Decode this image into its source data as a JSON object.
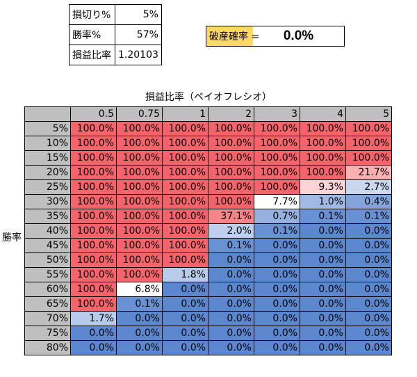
{
  "params": [
    {
      "label": "損切り%",
      "value": "5%"
    },
    {
      "label": "勝率%",
      "value": "57%"
    },
    {
      "label": "損益比率",
      "value": "1.20103"
    }
  ],
  "ruin": {
    "label": "破産確率 =",
    "value": "0.0%"
  },
  "table": {
    "col_title": "損益比率（ペイオフレシオ）",
    "row_title": "勝率",
    "columns": [
      "0.5",
      "0.75",
      "1",
      "2",
      "3",
      "4",
      "5"
    ],
    "rows": [
      {
        "label": "5%",
        "values": [
          "100.0%",
          "100.0%",
          "100.0%",
          "100.0%",
          "100.0%",
          "100.0%",
          "100.0%"
        ]
      },
      {
        "label": "10%",
        "values": [
          "100.0%",
          "100.0%",
          "100.0%",
          "100.0%",
          "100.0%",
          "100.0%",
          "100.0%"
        ]
      },
      {
        "label": "15%",
        "values": [
          "100.0%",
          "100.0%",
          "100.0%",
          "100.0%",
          "100.0%",
          "100.0%",
          "100.0%"
        ]
      },
      {
        "label": "20%",
        "values": [
          "100.0%",
          "100.0%",
          "100.0%",
          "100.0%",
          "100.0%",
          "100.0%",
          "21.7%"
        ]
      },
      {
        "label": "25%",
        "values": [
          "100.0%",
          "100.0%",
          "100.0%",
          "100.0%",
          "100.0%",
          "9.3%",
          "2.7%"
        ]
      },
      {
        "label": "30%",
        "values": [
          "100.0%",
          "100.0%",
          "100.0%",
          "100.0%",
          "7.7%",
          "1.0%",
          "0.4%"
        ]
      },
      {
        "label": "35%",
        "values": [
          "100.0%",
          "100.0%",
          "100.0%",
          "37.1%",
          "0.7%",
          "0.1%",
          "0.1%"
        ]
      },
      {
        "label": "40%",
        "values": [
          "100.0%",
          "100.0%",
          "100.0%",
          "2.0%",
          "0.1%",
          "0.0%",
          "0.0%"
        ]
      },
      {
        "label": "45%",
        "values": [
          "100.0%",
          "100.0%",
          "100.0%",
          "0.1%",
          "0.0%",
          "0.0%",
          "0.0%"
        ]
      },
      {
        "label": "50%",
        "values": [
          "100.0%",
          "100.0%",
          "100.0%",
          "0.0%",
          "0.0%",
          "0.0%",
          "0.0%"
        ]
      },
      {
        "label": "55%",
        "values": [
          "100.0%",
          "100.0%",
          "1.8%",
          "0.0%",
          "0.0%",
          "0.0%",
          "0.0%"
        ]
      },
      {
        "label": "60%",
        "values": [
          "100.0%",
          "6.8%",
          "0.0%",
          "0.0%",
          "0.0%",
          "0.0%",
          "0.0%"
        ]
      },
      {
        "label": "65%",
        "values": [
          "100.0%",
          "0.1%",
          "0.0%",
          "0.0%",
          "0.0%",
          "0.0%",
          "0.0%"
        ]
      },
      {
        "label": "70%",
        "values": [
          "1.7%",
          "0.0%",
          "0.0%",
          "0.0%",
          "0.0%",
          "0.0%",
          "0.0%"
        ]
      },
      {
        "label": "75%",
        "values": [
          "0.0%",
          "0.0%",
          "0.0%",
          "0.0%",
          "0.0%",
          "0.0%",
          "0.0%"
        ]
      },
      {
        "label": "80%",
        "values": [
          "0.0%",
          "0.0%",
          "0.0%",
          "0.0%",
          "0.0%",
          "0.0%",
          "0.0%"
        ]
      }
    ]
  },
  "colors": {
    "high": "#f4646a",
    "mid": "#ffffff",
    "low": "#5b87cf",
    "header_bg": "#bfbfbf",
    "ruin_label_bg": "#ffd966"
  }
}
